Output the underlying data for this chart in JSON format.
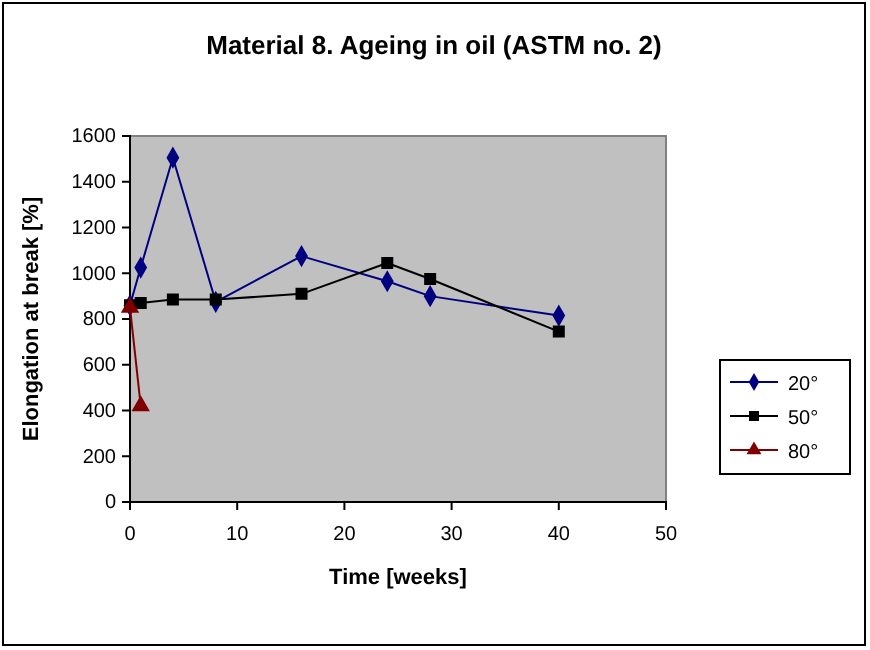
{
  "chart_data": {
    "type": "line",
    "title": "Material 8. Ageing in oil (ASTM no. 2)",
    "xlabel": "Time [weeks]",
    "ylabel": "Elongation at break [%]",
    "xlim": [
      0,
      50
    ],
    "xticks": [
      0,
      10,
      20,
      30,
      40,
      50
    ],
    "ylim": [
      0,
      1600
    ],
    "yticks": [
      0,
      200,
      400,
      600,
      800,
      1000,
      1200,
      1400,
      1600
    ],
    "grid": false,
    "legend": "right",
    "series": [
      {
        "name": "20°",
        "color": "#000080",
        "marker": "diamond",
        "x": [
          0,
          1,
          4,
          8,
          16,
          24,
          28,
          40
        ],
        "values": [
          860,
          1025,
          1505,
          875,
          1075,
          965,
          900,
          815
        ]
      },
      {
        "name": "50°",
        "color": "#000000",
        "marker": "square",
        "x": [
          0,
          1,
          4,
          8,
          16,
          24,
          28,
          40
        ],
        "values": [
          860,
          870,
          885,
          885,
          910,
          1045,
          975,
          745
        ]
      },
      {
        "name": "80°",
        "color": "#800000",
        "marker": "triangle",
        "x": [
          0,
          1
        ],
        "values": [
          850,
          420
        ]
      }
    ]
  }
}
